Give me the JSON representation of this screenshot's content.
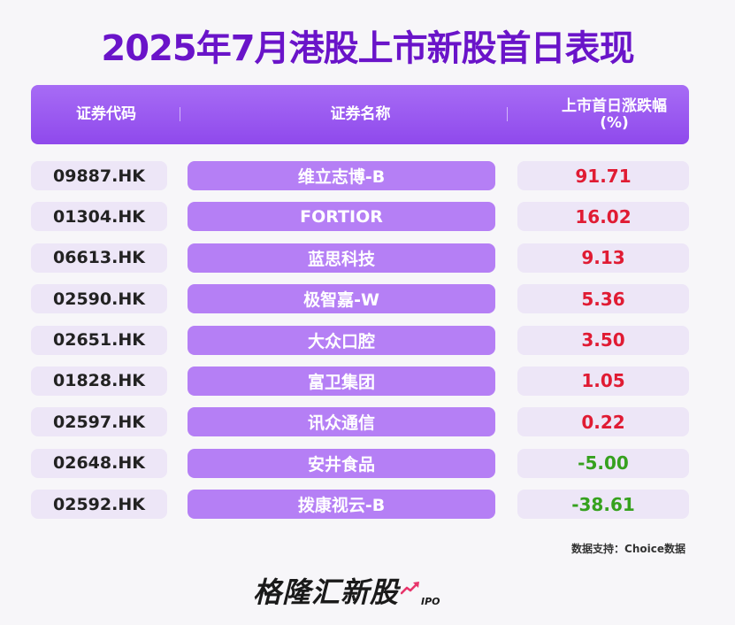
{
  "title": "2025年7月港股上市新股首日表现",
  "headers": {
    "code": "证券代码",
    "name": "证券名称",
    "change_line1": "上市首日涨跌幅",
    "change_line2": "(%)"
  },
  "rows": [
    {
      "code": "09887.HK",
      "name": "维立志博-B",
      "change": "91.71",
      "direction": "up"
    },
    {
      "code": "01304.HK",
      "name": "FORTIOR",
      "change": "16.02",
      "direction": "up"
    },
    {
      "code": "06613.HK",
      "name": "蓝思科技",
      "change": "9.13",
      "direction": "up"
    },
    {
      "code": "02590.HK",
      "name": "极智嘉-W",
      "change": "5.36",
      "direction": "up"
    },
    {
      "code": "02651.HK",
      "name": "大众口腔",
      "change": "3.50",
      "direction": "up"
    },
    {
      "code": "01828.HK",
      "name": "富卫集团",
      "change": "1.05",
      "direction": "up"
    },
    {
      "code": "02597.HK",
      "name": "讯众通信",
      "change": "0.22",
      "direction": "up"
    },
    {
      "code": "02648.HK",
      "name": "安井食品",
      "change": "-5.00",
      "direction": "down"
    },
    {
      "code": "02592.HK",
      "name": "拨康视云-B",
      "change": "-38.61",
      "direction": "down"
    }
  ],
  "source": "数据支持：Choice数据",
  "logo": {
    "text": "格隆汇新股",
    "suffix": "IPO"
  },
  "colors": {
    "title": "#6a14c9",
    "header": "#9450ee",
    "name_cell": "#b57ff5",
    "cell": "#ede6f7",
    "up": "#e01b33",
    "down": "#36a11e"
  }
}
